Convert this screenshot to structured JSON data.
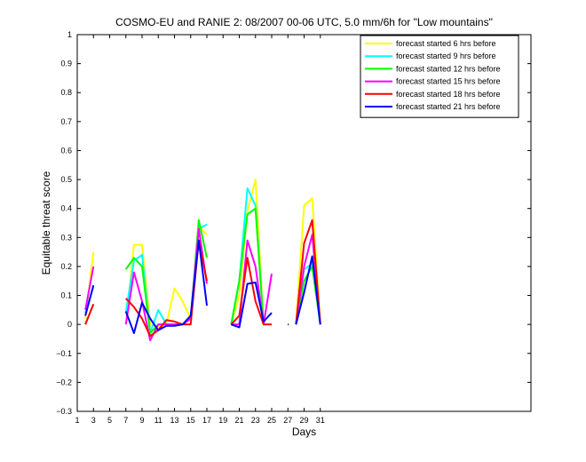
{
  "chart_data": {
    "type": "line",
    "title": "COSMO-EU and RANIE 2: 08/2007 00-06 UTC, 5.0 mm/6h for \"Low mountains\"",
    "xlabel": "Days",
    "ylabel": "Equitable threat score",
    "xlim": [
      1,
      57
    ],
    "ylim": [
      -0.3,
      1
    ],
    "xticks": [
      1,
      3,
      5,
      7,
      9,
      11,
      13,
      15,
      17,
      19,
      21,
      23,
      25,
      27,
      29,
      31
    ],
    "yticks": [
      -0.3,
      -0.2,
      -0.1,
      0,
      0.1,
      0.2,
      0.3,
      0.4,
      0.5,
      0.6,
      0.7,
      0.8,
      0.9,
      1
    ],
    "ytick_labels": [
      "−0.3",
      "−0.2",
      "−0.1",
      "0",
      "0.1",
      "0.2",
      "0.3",
      "0.4",
      "0.5",
      "0.6",
      "0.7",
      "0.8",
      "0.9",
      "1"
    ],
    "legend_position": "top-right",
    "grid": false,
    "series": [
      {
        "name": "forecast started 6 hrs before",
        "color": "#ffff00",
        "points": [
          [
            2,
            0.02
          ],
          [
            3,
            0.25
          ],
          null,
          [
            7,
            0.0
          ],
          [
            8,
            0.275
          ],
          [
            9,
            0.275
          ],
          [
            10,
            0.0
          ],
          [
            11,
            -0.01
          ],
          [
            12,
            0.0
          ],
          [
            13,
            0.125
          ],
          [
            14,
            0.08
          ],
          [
            15,
            0.02
          ],
          [
            16,
            0.34
          ],
          [
            17,
            0.31
          ],
          null,
          [
            20,
            0.0
          ],
          [
            21,
            0.1
          ],
          [
            22,
            0.39
          ],
          [
            23,
            0.5
          ],
          [
            24,
            0.0
          ],
          null,
          [
            28,
            0.0
          ],
          [
            29,
            0.41
          ],
          [
            30,
            0.435
          ],
          [
            31,
            0.0
          ]
        ]
      },
      {
        "name": "forecast started 9 hrs before",
        "color": "#00ffff",
        "points": [
          [
            2,
            0.04
          ],
          [
            3,
            0.13
          ],
          null,
          [
            7,
            0.04
          ],
          [
            8,
            0.22
          ],
          [
            9,
            0.24
          ],
          [
            10,
            -0.03
          ],
          [
            11,
            0.05
          ],
          [
            12,
            0.0
          ],
          [
            13,
            0.0
          ],
          [
            14,
            0.0
          ],
          [
            15,
            0.02
          ],
          [
            16,
            0.33
          ],
          [
            17,
            0.345
          ],
          null,
          [
            20,
            0.0
          ],
          [
            21,
            0.15
          ],
          [
            22,
            0.47
          ],
          [
            23,
            0.41
          ],
          [
            24,
            0.0
          ],
          null,
          [
            28,
            0.0
          ],
          [
            29,
            0.19
          ],
          [
            30,
            0.21
          ],
          [
            31,
            0.0
          ]
        ]
      },
      {
        "name": "forecast started 12 hrs before",
        "color": "#00ff00",
        "points": [
          [
            2,
            0.0
          ],
          [
            3,
            0.07
          ],
          null,
          [
            7,
            0.19
          ],
          [
            8,
            0.23
          ],
          [
            9,
            0.2
          ],
          [
            10,
            -0.03
          ],
          [
            11,
            0.0
          ],
          [
            12,
            0.0
          ],
          [
            13,
            0.0
          ],
          [
            14,
            0.0
          ],
          [
            15,
            0.02
          ],
          [
            16,
            0.36
          ],
          [
            17,
            0.23
          ],
          null,
          [
            20,
            0.0
          ],
          [
            21,
            0.15
          ],
          [
            22,
            0.38
          ],
          [
            23,
            0.4
          ],
          [
            24,
            0.0
          ],
          null,
          [
            28,
            0.0
          ],
          [
            29,
            0.15
          ],
          [
            30,
            0.2
          ],
          [
            31,
            0.0
          ]
        ]
      },
      {
        "name": "forecast started 15 hrs before",
        "color": "#ff00ff",
        "points": [
          [
            2,
            0.05
          ],
          [
            3,
            0.2
          ],
          null,
          [
            7,
            0.0
          ],
          [
            8,
            0.18
          ],
          [
            9,
            0.08
          ],
          [
            10,
            -0.055
          ],
          [
            11,
            0.0
          ],
          [
            12,
            0.0
          ],
          [
            13,
            0.0
          ],
          [
            14,
            0.0
          ],
          [
            15,
            0.02
          ],
          [
            16,
            0.33
          ],
          [
            17,
            0.14
          ],
          null,
          [
            20,
            0.0
          ],
          [
            21,
            0.0
          ],
          [
            22,
            0.29
          ],
          [
            23,
            0.2
          ],
          [
            24,
            0.0
          ],
          [
            25,
            0.175
          ],
          null,
          [
            28,
            0.0
          ],
          [
            29,
            0.2
          ],
          [
            30,
            0.31
          ],
          [
            31,
            0.0
          ]
        ]
      },
      {
        "name": "forecast started 18 hrs before",
        "color": "#ff0000",
        "points": [
          [
            2,
            0.0
          ],
          [
            3,
            0.07
          ],
          null,
          [
            7,
            0.09
          ],
          [
            8,
            0.06
          ],
          [
            9,
            0.02
          ],
          [
            10,
            -0.04
          ],
          [
            11,
            -0.02
          ],
          [
            12,
            0.015
          ],
          [
            13,
            0.01
          ],
          [
            14,
            0.0
          ],
          [
            15,
            0.0
          ],
          [
            16,
            0.29
          ],
          [
            17,
            0.15
          ],
          null,
          [
            20,
            0.0
          ],
          [
            21,
            0.03
          ],
          [
            22,
            0.23
          ],
          [
            23,
            0.08
          ],
          [
            24,
            0.0
          ],
          [
            25,
            0.0
          ],
          null,
          [
            28,
            0.0
          ],
          [
            29,
            0.28
          ],
          [
            30,
            0.36
          ],
          [
            31,
            0.0
          ]
        ]
      },
      {
        "name": "forecast started 21 hrs before",
        "color": "#0000ff",
        "points": [
          [
            2,
            0.03
          ],
          [
            3,
            0.135
          ],
          null,
          [
            7,
            0.045
          ],
          [
            8,
            -0.03
          ],
          [
            9,
            0.075
          ],
          [
            10,
            0.02
          ],
          [
            11,
            -0.02
          ],
          [
            12,
            -0.005
          ],
          [
            13,
            -0.005
          ],
          [
            14,
            0.0
          ],
          [
            15,
            0.03
          ],
          [
            16,
            0.29
          ],
          [
            17,
            0.065
          ],
          null,
          [
            20,
            0.0
          ],
          [
            21,
            -0.01
          ],
          [
            22,
            0.14
          ],
          [
            23,
            0.145
          ],
          [
            24,
            0.01
          ],
          [
            25,
            0.04
          ],
          null,
          [
            28,
            0.0
          ],
          [
            29,
            0.11
          ],
          [
            30,
            0.235
          ],
          [
            31,
            0.0
          ]
        ]
      },
      {
        "name": "",
        "color": "#000000",
        "points": [
          [
            27,
            0.0
          ],
          [
            27.1,
            0.0
          ]
        ]
      }
    ]
  }
}
